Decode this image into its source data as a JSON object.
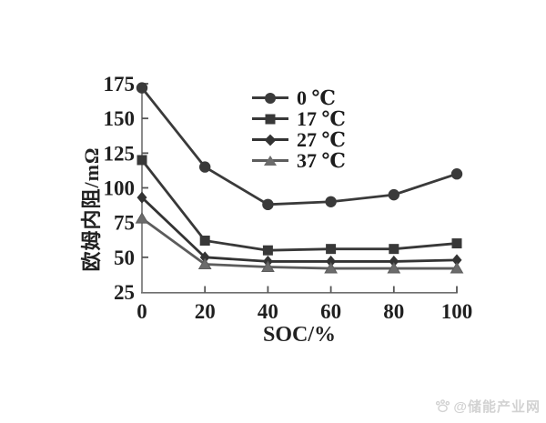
{
  "chart_data": {
    "type": "line",
    "title": "",
    "xlabel": "SOC/%",
    "ylabel": "欧姆内阻/mΩ",
    "xlim": [
      0,
      100
    ],
    "ylim": [
      25,
      175
    ],
    "grid": false,
    "legend_position": "upper-center-inside",
    "x": [
      0,
      20,
      40,
      60,
      80,
      100
    ],
    "x_ticks": [
      0,
      20,
      40,
      60,
      80,
      100
    ],
    "y_ticks": [
      175,
      150,
      125,
      100,
      75,
      50,
      25
    ],
    "series": [
      {
        "name": "0 ℃",
        "marker": "circle",
        "color": "#3a3a3a",
        "values": [
          172,
          115,
          88,
          90,
          95,
          110
        ]
      },
      {
        "name": "17 ℃",
        "marker": "square",
        "color": "#383838",
        "values": [
          120,
          62,
          55,
          56,
          56,
          60
        ]
      },
      {
        "name": "27 ℃",
        "marker": "diamond",
        "color": "#333333",
        "values": [
          93,
          50,
          47,
          47,
          47,
          48
        ]
      },
      {
        "name": "37 ℃",
        "marker": "triangle",
        "color": "#5c5c5c",
        "values": [
          78,
          45,
          43,
          42,
          42,
          42
        ]
      }
    ],
    "axis_color": "#6f6f6f",
    "tick_text_color": "#1f1f1f"
  },
  "watermark": {
    "icon": "paw-icon",
    "text": "@储能产业网"
  }
}
